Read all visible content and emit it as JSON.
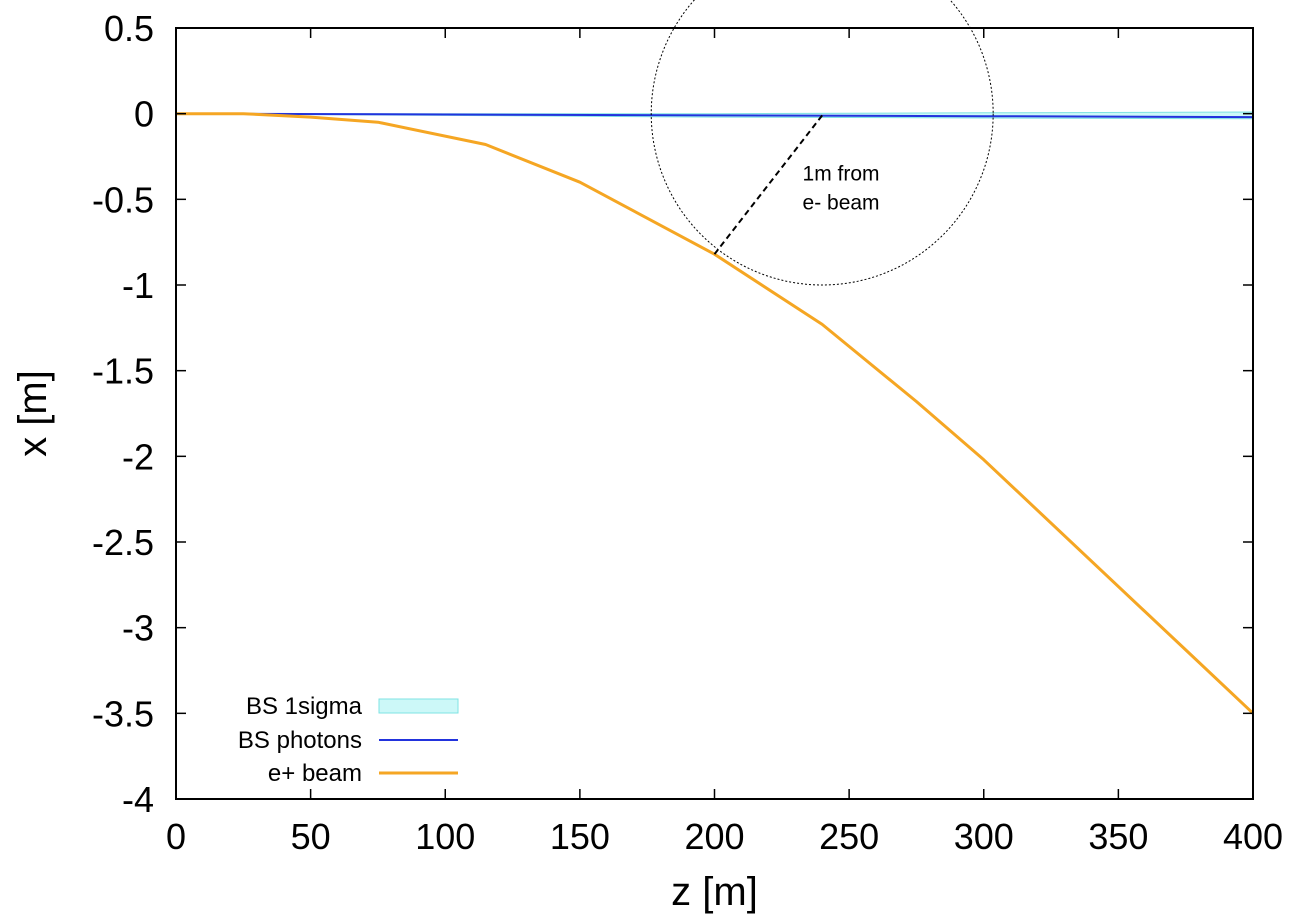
{
  "chart_data": {
    "type": "line",
    "xlabel": "z [m]",
    "ylabel": "x [m]",
    "xlim": [
      0,
      400
    ],
    "ylim": [
      -4,
      0.5
    ],
    "xticks": [
      "0",
      "50",
      "100",
      "150",
      "200",
      "250",
      "300",
      "350",
      "400"
    ],
    "yticks": [
      "0.5",
      "0",
      "-0.5",
      "-1",
      "-1.5",
      "-2",
      "-2.5",
      "-3",
      "-3.5",
      "-4"
    ],
    "grid": false,
    "legend_position": "bottom-left",
    "series": [
      {
        "name": "BS 1sigma",
        "kind": "band",
        "color": "#ccf8f8",
        "edge_color": "#7fe3e3",
        "x": [
          0,
          100,
          200,
          300,
          400
        ],
        "upper": [
          0.0,
          0.0,
          0.0,
          0.005,
          0.01
        ],
        "lower": [
          0.0,
          -0.01,
          -0.02,
          -0.025,
          -0.03
        ]
      },
      {
        "name": "BS photons",
        "kind": "line",
        "color": "#2233dd",
        "x": [
          0,
          100,
          200,
          300,
          400
        ],
        "y": [
          0.0,
          -0.005,
          -0.01,
          -0.015,
          -0.02
        ]
      },
      {
        "name": "e+ beam",
        "kind": "line",
        "color": "#f5a623",
        "x": [
          0,
          25,
          50,
          75,
          115,
          150,
          200,
          240,
          275,
          300,
          375,
          400
        ],
        "y": [
          0.0,
          0.0,
          -0.02,
          -0.05,
          -0.18,
          -0.4,
          -0.82,
          -1.23,
          -1.68,
          -2.02,
          -3.13,
          -3.5
        ]
      }
    ],
    "annotations": [
      {
        "type": "circle",
        "center": [
          240,
          0.0
        ],
        "radius_z": 63.5,
        "radius_x": 1.0,
        "color": "#000000"
      },
      {
        "type": "dashed-line",
        "from": [
          240,
          -0.01
        ],
        "to": [
          200,
          -0.82
        ],
        "color": "#000000"
      },
      {
        "type": "text",
        "lines": [
          "1m from",
          "e- beam"
        ],
        "at": [
          247,
          -0.39
        ]
      }
    ]
  }
}
